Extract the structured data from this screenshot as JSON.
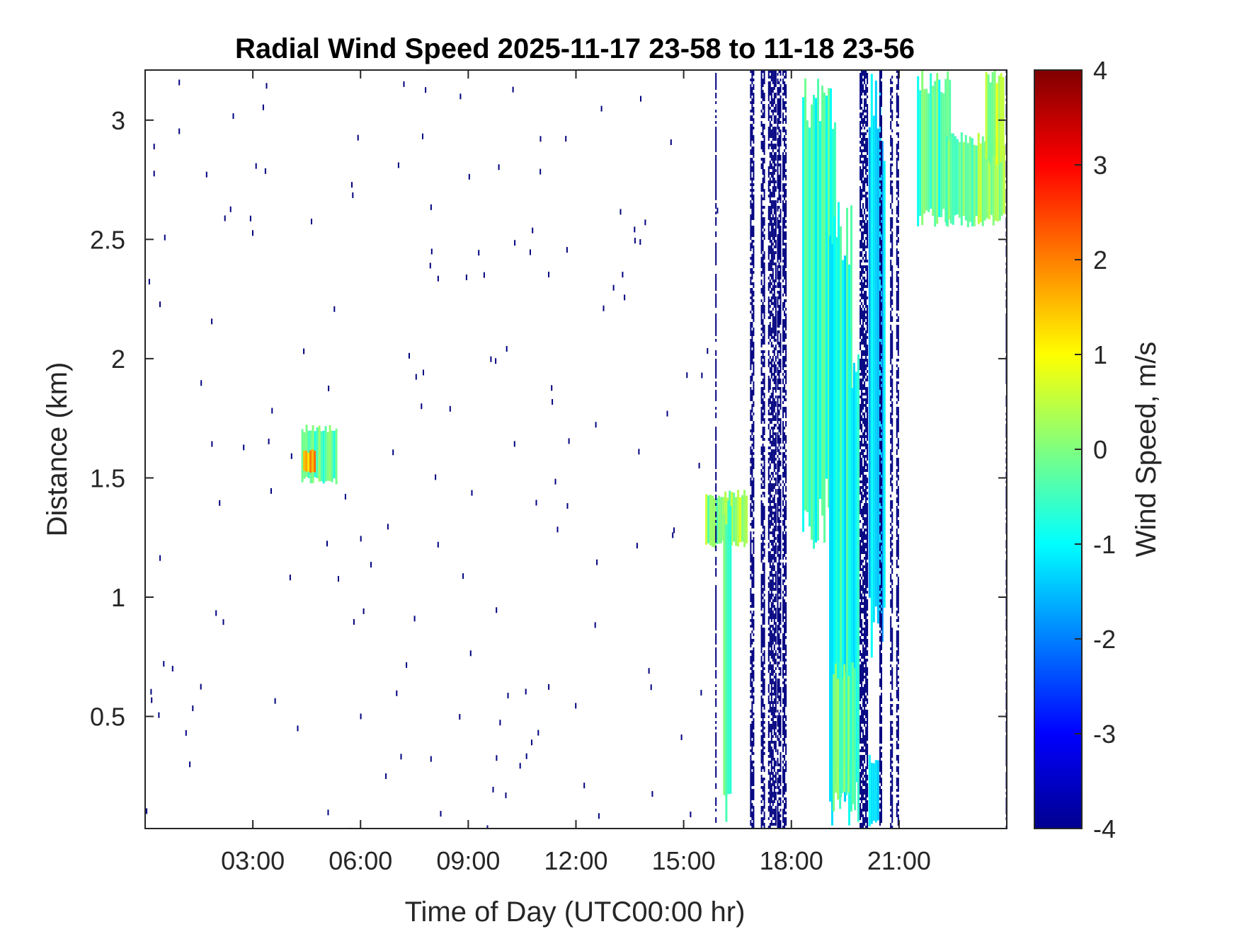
{
  "chart_data": {
    "type": "heatmap",
    "title": "Radial Wind Speed 2025-11-17 23-58 to 11-18 23-56",
    "xlabel": "Time of Day (UTC00:00 hr)",
    "ylabel": "Distance (km)",
    "x_unit": "hours",
    "xlim": [
      0.0,
      24.0
    ],
    "ylim": [
      0.03,
      3.21
    ],
    "x_ticks": [
      {
        "value": 3,
        "label": "03:00"
      },
      {
        "value": 6,
        "label": "06:00"
      },
      {
        "value": 9,
        "label": "09:00"
      },
      {
        "value": 12,
        "label": "12:00"
      },
      {
        "value": 15,
        "label": "15:00"
      },
      {
        "value": 18,
        "label": "18:00"
      },
      {
        "value": 21,
        "label": "21:00"
      }
    ],
    "y_ticks": [
      {
        "value": 0.5,
        "label": "0.5"
      },
      {
        "value": 1,
        "label": "1"
      },
      {
        "value": 1.5,
        "label": "1.5"
      },
      {
        "value": 2,
        "label": "2"
      },
      {
        "value": 2.5,
        "label": "2.5"
      },
      {
        "value": 3,
        "label": "3"
      }
    ],
    "colorbar": {
      "label": "Wind Speed, m/s",
      "colormap": "jet",
      "clim": [
        -4,
        4
      ],
      "ticks": [
        {
          "value": 4,
          "label": "4"
        },
        {
          "value": 3,
          "label": "3"
        },
        {
          "value": 2,
          "label": "2"
        },
        {
          "value": 1,
          "label": "1"
        },
        {
          "value": 0,
          "label": "0"
        },
        {
          "value": -1,
          "label": "-1"
        },
        {
          "value": -2,
          "label": "-2"
        },
        {
          "value": -3,
          "label": "-3"
        },
        {
          "value": -4,
          "label": "-4"
        }
      ]
    },
    "blocks": [
      {
        "t0": 4.35,
        "t1": 5.3,
        "d0": 1.47,
        "d1": 1.73,
        "value": -0.3
      },
      {
        "t0": 4.4,
        "t1": 4.75,
        "d0": 1.52,
        "d1": 1.62,
        "value": 1.8
      },
      {
        "t0": 15.6,
        "t1": 16.75,
        "d0": 1.2,
        "d1": 1.45,
        "value": 0.2
      },
      {
        "t0": 16.1,
        "t1": 16.3,
        "d0": 0.03,
        "d1": 1.45,
        "value": -0.5
      },
      {
        "t0": 18.3,
        "t1": 19.2,
        "d0": 1.2,
        "d1": 3.21,
        "value": -0.7
      },
      {
        "t0": 19.05,
        "t1": 19.7,
        "d0": 0.03,
        "d1": 2.8,
        "value": -0.8
      },
      {
        "t0": 19.6,
        "t1": 19.85,
        "d0": 0.03,
        "d1": 2.2,
        "value": -1.1
      },
      {
        "t0": 19.15,
        "t1": 19.75,
        "d0": 0.1,
        "d1": 0.75,
        "value": -0.2
      },
      {
        "t0": 20.15,
        "t1": 20.6,
        "d0": 0.65,
        "d1": 3.21,
        "value": -1.3
      },
      {
        "t0": 20.15,
        "t1": 20.4,
        "d0": 0.03,
        "d1": 0.35,
        "value": -1.2
      },
      {
        "t0": 21.5,
        "t1": 22.4,
        "d0": 2.55,
        "d1": 3.21,
        "value": -0.5
      },
      {
        "t0": 22.3,
        "t1": 23.9,
        "d0": 2.55,
        "d1": 2.95,
        "value": 0.0
      },
      {
        "t0": 23.4,
        "t1": 23.9,
        "d0": 2.8,
        "d1": 3.21,
        "value": 0.3
      }
    ],
    "bands": [
      {
        "t0": 16.85,
        "t1": 16.95,
        "d0": 0.03,
        "d1": 3.21,
        "value": -4
      },
      {
        "t0": 17.15,
        "t1": 17.25,
        "d0": 0.03,
        "d1": 3.21,
        "value": -4
      },
      {
        "t0": 17.35,
        "t1": 17.55,
        "d0": 0.03,
        "d1": 3.21,
        "value": -4
      },
      {
        "t0": 17.6,
        "t1": 17.7,
        "d0": 0.03,
        "d1": 3.21,
        "value": -4
      },
      {
        "t0": 17.75,
        "t1": 17.85,
        "d0": 0.03,
        "d1": 3.21,
        "value": -4
      },
      {
        "t0": 19.9,
        "t1": 20.12,
        "d0": 0.03,
        "d1": 3.21,
        "value": -4
      },
      {
        "t0": 20.45,
        "t1": 20.52,
        "d0": 0.03,
        "d1": 3.21,
        "value": -4
      },
      {
        "t0": 20.75,
        "t1": 20.8,
        "d0": 0.03,
        "d1": 3.21,
        "value": -4
      },
      {
        "t0": 20.92,
        "t1": 20.97,
        "d0": 0.03,
        "d1": 3.21,
        "value": -4
      },
      {
        "t0": 15.88,
        "t1": 15.91,
        "d0": 0.03,
        "d1": 3.21,
        "value": -4
      },
      {
        "t0": 23.97,
        "t1": 24.0,
        "d0": 0.03,
        "d1": 3.21,
        "value": -4
      }
    ],
    "speckle_count": 160,
    "speckle_value": -4
  }
}
